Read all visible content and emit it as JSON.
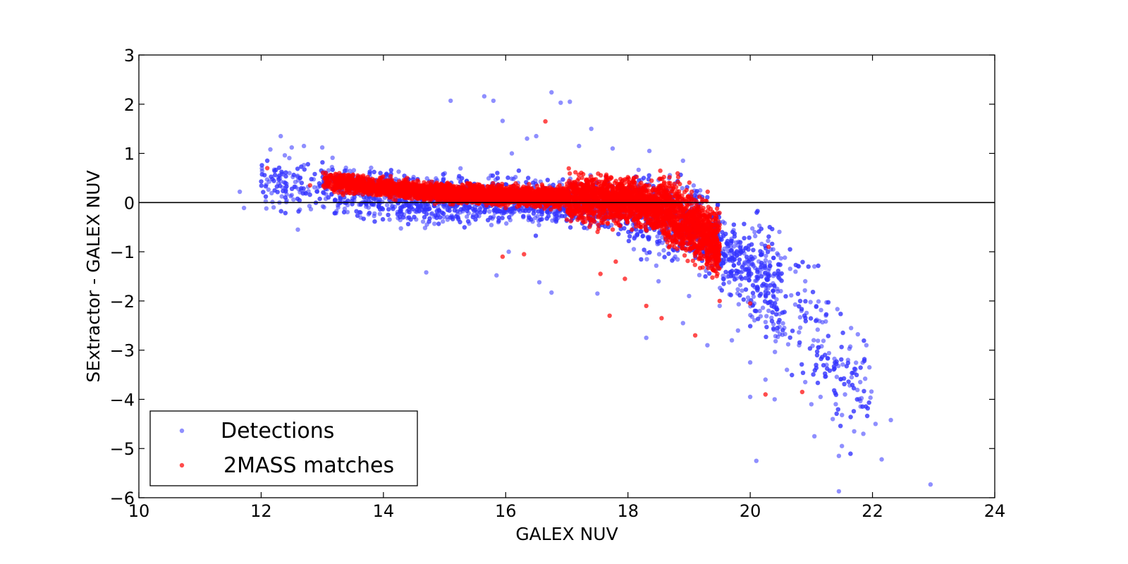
{
  "chart_data": {
    "type": "scatter",
    "title": "",
    "xlabel": "GALEX NUV",
    "ylabel": "SExtractor - GALEX NUV",
    "xlim": [
      10,
      24
    ],
    "ylim": [
      -6,
      3
    ],
    "xticks": [
      10,
      12,
      14,
      16,
      18,
      20,
      22,
      24
    ],
    "yticks": [
      -6,
      -5,
      -4,
      -3,
      -2,
      -1,
      0,
      1,
      2,
      3
    ],
    "xtick_labels": [
      "10",
      "12",
      "14",
      "16",
      "18",
      "20",
      "22",
      "24"
    ],
    "ytick_labels": [
      "−6",
      "−5",
      "−4",
      "−3",
      "−2",
      "−1",
      "0",
      "1",
      "2",
      "3"
    ],
    "grid": false,
    "reference_line": {
      "y": 0,
      "color": "#000000"
    },
    "legend": {
      "placement": "lower-left",
      "entries": [
        "Detections",
        "2MASS matches"
      ]
    },
    "series": [
      {
        "name": "Detections",
        "color": "#3333ff",
        "opacity": 0.55,
        "density_trend": [
          [
            12,
            0.45
          ],
          [
            13,
            0.3
          ],
          [
            14,
            0.1
          ],
          [
            15,
            0.05
          ],
          [
            16,
            0.05
          ],
          [
            17,
            0.0
          ],
          [
            18,
            -0.1
          ],
          [
            19,
            -0.4
          ],
          [
            19.5,
            -0.9
          ],
          [
            20,
            -1.3
          ],
          [
            20.5,
            -1.8
          ],
          [
            21,
            -2.5
          ],
          [
            21.5,
            -3.3
          ],
          [
            22,
            -3.8
          ]
        ],
        "points": [
          [
            11.65,
            0.22
          ],
          [
            11.72,
            -0.11
          ],
          [
            12.32,
            1.35
          ],
          [
            12.5,
            1.12
          ],
          [
            12.7,
            1.15
          ],
          [
            13.0,
            1.12
          ],
          [
            12.6,
            -0.55
          ],
          [
            12.3,
            0.0
          ],
          [
            15.1,
            2.07
          ],
          [
            15.65,
            2.16
          ],
          [
            15.8,
            2.07
          ],
          [
            15.95,
            1.66
          ],
          [
            16.75,
            2.24
          ],
          [
            16.9,
            2.03
          ],
          [
            17.05,
            2.05
          ],
          [
            17.4,
            1.5
          ],
          [
            17.2,
            1.15
          ],
          [
            16.5,
            1.35
          ],
          [
            16.35,
            1.3
          ],
          [
            16.1,
            1.0
          ],
          [
            17.75,
            1.1
          ],
          [
            18.35,
            1.05
          ],
          [
            18.9,
            0.85
          ],
          [
            14.7,
            -1.42
          ],
          [
            15.85,
            -1.48
          ],
          [
            16.05,
            -1.0
          ],
          [
            16.55,
            -1.62
          ],
          [
            16.75,
            -1.83
          ],
          [
            17.5,
            -1.85
          ],
          [
            18.3,
            -2.75
          ],
          [
            18.9,
            -2.45
          ],
          [
            19.3,
            -2.9
          ],
          [
            19.7,
            -2.8
          ],
          [
            20.0,
            -3.95
          ],
          [
            20.0,
            -3.25
          ],
          [
            20.1,
            -5.25
          ],
          [
            20.25,
            -3.6
          ],
          [
            20.4,
            -4.0
          ],
          [
            20.6,
            -3.4
          ],
          [
            20.8,
            -2.9
          ],
          [
            20.9,
            -3.65
          ],
          [
            21.0,
            -4.1
          ],
          [
            21.05,
            -4.75
          ],
          [
            21.15,
            -3.95
          ],
          [
            21.25,
            -3.3
          ],
          [
            21.35,
            -4.4
          ],
          [
            21.45,
            -5.15
          ],
          [
            21.5,
            -4.95
          ],
          [
            21.55,
            -3.9
          ],
          [
            21.6,
            -3.2
          ],
          [
            21.65,
            -2.55
          ],
          [
            21.7,
            -4.65
          ],
          [
            21.8,
            -3.65
          ],
          [
            21.85,
            -4.7
          ],
          [
            21.9,
            -2.9
          ],
          [
            21.95,
            -3.35
          ],
          [
            22.05,
            -4.5
          ],
          [
            22.15,
            -5.22
          ],
          [
            22.3,
            -4.42
          ],
          [
            22.95,
            -5.73
          ],
          [
            21.45,
            -5.87
          ],
          [
            20.9,
            -1.6
          ],
          [
            21.05,
            -1.3
          ],
          [
            20.5,
            -1.8
          ],
          [
            20.3,
            -2.2
          ],
          [
            19.8,
            -2.6
          ],
          [
            19.5,
            -2.1
          ],
          [
            19.0,
            -1.9
          ],
          [
            18.5,
            -1.6
          ]
        ]
      },
      {
        "name": "2MASS matches",
        "color": "#ff0000",
        "opacity": 0.7,
        "density_trend": [
          [
            13,
            0.45
          ],
          [
            14,
            0.3
          ],
          [
            15,
            0.2
          ],
          [
            16,
            0.15
          ],
          [
            17,
            0.1
          ],
          [
            18,
            0.05
          ],
          [
            18.5,
            -0.1
          ],
          [
            19,
            -0.4
          ],
          [
            19.5,
            -0.9
          ]
        ],
        "points": [
          [
            12.1,
            0.7
          ],
          [
            12.8,
            0.35
          ],
          [
            13.3,
            0.55
          ],
          [
            16.65,
            1.65
          ],
          [
            17.8,
            -1.2
          ],
          [
            17.7,
            -2.3
          ],
          [
            17.95,
            -1.55
          ],
          [
            18.3,
            -2.1
          ],
          [
            18.55,
            -2.35
          ],
          [
            19.1,
            -2.7
          ],
          [
            20.25,
            -3.9
          ],
          [
            20.85,
            -3.85
          ],
          [
            17.55,
            -1.45
          ],
          [
            16.3,
            -1.05
          ],
          [
            15.95,
            -1.1
          ],
          [
            19.5,
            -2.0
          ],
          [
            20.0,
            -2.05
          ],
          [
            20.3,
            -0.9
          ]
        ]
      }
    ]
  }
}
